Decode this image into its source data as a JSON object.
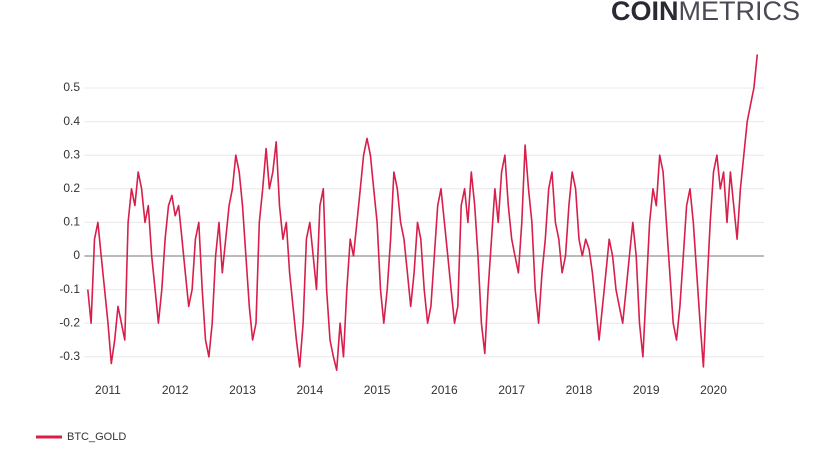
{
  "logo": {
    "bold": "COIN",
    "light": "METRICS"
  },
  "chart_data": {
    "type": "line",
    "x": [
      2010.7,
      2010.75,
      2010.8,
      2010.85,
      2010.9,
      2010.95,
      2011,
      2011.05,
      2011.1,
      2011.15,
      2011.2,
      2011.25,
      2011.3,
      2011.35,
      2011.4,
      2011.45,
      2011.5,
      2011.55,
      2011.6,
      2011.65,
      2011.7,
      2011.75,
      2011.8,
      2011.85,
      2011.9,
      2011.95,
      2012,
      2012.05,
      2012.1,
      2012.15,
      2012.2,
      2012.25,
      2012.3,
      2012.35,
      2012.4,
      2012.45,
      2012.5,
      2012.55,
      2012.6,
      2012.65,
      2012.7,
      2012.75,
      2012.8,
      2012.85,
      2012.9,
      2012.95,
      2013,
      2013.05,
      2013.1,
      2013.15,
      2013.2,
      2013.25,
      2013.3,
      2013.35,
      2013.4,
      2013.45,
      2013.5,
      2013.55,
      2013.6,
      2013.65,
      2013.7,
      2013.75,
      2013.8,
      2013.85,
      2013.9,
      2013.95,
      2014,
      2014.05,
      2014.1,
      2014.15,
      2014.2,
      2014.25,
      2014.3,
      2014.35,
      2014.4,
      2014.45,
      2014.5,
      2014.55,
      2014.6,
      2014.65,
      2014.7,
      2014.75,
      2014.8,
      2014.85,
      2014.9,
      2014.95,
      2015,
      2015.05,
      2015.1,
      2015.15,
      2015.2,
      2015.25,
      2015.3,
      2015.35,
      2015.4,
      2015.45,
      2015.5,
      2015.55,
      2015.6,
      2015.65,
      2015.7,
      2015.75,
      2015.8,
      2015.85,
      2015.9,
      2015.95,
      2016,
      2016.05,
      2016.1,
      2016.15,
      2016.2,
      2016.25,
      2016.3,
      2016.35,
      2016.4,
      2016.45,
      2016.5,
      2016.55,
      2016.6,
      2016.65,
      2016.7,
      2016.75,
      2016.8,
      2016.85,
      2016.9,
      2016.95,
      2017,
      2017.05,
      2017.1,
      2017.15,
      2017.2,
      2017.25,
      2017.3,
      2017.35,
      2017.4,
      2017.45,
      2017.5,
      2017.55,
      2017.6,
      2017.65,
      2017.7,
      2017.75,
      2017.8,
      2017.85,
      2017.9,
      2017.95,
      2018,
      2018.05,
      2018.1,
      2018.15,
      2018.2,
      2018.25,
      2018.3,
      2018.35,
      2018.4,
      2018.45,
      2018.5,
      2018.55,
      2018.6,
      2018.65,
      2018.7,
      2018.75,
      2018.8,
      2018.85,
      2018.9,
      2018.95,
      2019,
      2019.05,
      2019.1,
      2019.15,
      2019.2,
      2019.25,
      2019.3,
      2019.35,
      2019.4,
      2019.45,
      2019.5,
      2019.55,
      2019.6,
      2019.65,
      2019.7,
      2019.75,
      2019.8,
      2019.85,
      2019.9,
      2019.95,
      2020,
      2020.05,
      2020.1,
      2020.15,
      2020.2,
      2020.25,
      2020.3,
      2020.35,
      2020.4,
      2020.45,
      2020.5,
      2020.55,
      2020.6,
      2020.65
    ],
    "series": [
      {
        "name": "BTC_GOLD",
        "color": "#d81e4a",
        "values": [
          -0.1,
          -0.2,
          0.05,
          0.1,
          0.0,
          -0.1,
          -0.2,
          -0.32,
          -0.25,
          -0.15,
          -0.2,
          -0.25,
          0.1,
          0.2,
          0.15,
          0.25,
          0.2,
          0.1,
          0.15,
          0.0,
          -0.1,
          -0.2,
          -0.1,
          0.05,
          0.15,
          0.18,
          0.12,
          0.15,
          0.05,
          -0.05,
          -0.15,
          -0.1,
          0.05,
          0.1,
          -0.1,
          -0.25,
          -0.3,
          -0.2,
          0.0,
          0.1,
          -0.05,
          0.05,
          0.15,
          0.2,
          0.3,
          0.25,
          0.15,
          0.0,
          -0.15,
          -0.25,
          -0.2,
          0.1,
          0.2,
          0.32,
          0.2,
          0.25,
          0.34,
          0.15,
          0.05,
          0.1,
          -0.05,
          -0.15,
          -0.25,
          -0.33,
          -0.2,
          0.05,
          0.1,
          0.0,
          -0.1,
          0.15,
          0.2,
          -0.1,
          -0.25,
          -0.3,
          -0.34,
          -0.2,
          -0.3,
          -0.1,
          0.05,
          0.0,
          0.1,
          0.2,
          0.3,
          0.35,
          0.3,
          0.2,
          0.1,
          -0.1,
          -0.2,
          -0.1,
          0.05,
          0.25,
          0.2,
          0.1,
          0.05,
          -0.05,
          -0.15,
          -0.05,
          0.1,
          0.05,
          -0.1,
          -0.2,
          -0.15,
          0.0,
          0.15,
          0.2,
          0.1,
          0.0,
          -0.1,
          -0.2,
          -0.15,
          0.15,
          0.2,
          0.1,
          0.25,
          0.15,
          0.0,
          -0.2,
          -0.29,
          -0.1,
          0.05,
          0.2,
          0.1,
          0.25,
          0.3,
          0.15,
          0.05,
          0.0,
          -0.05,
          0.1,
          0.33,
          0.2,
          0.1,
          -0.1,
          -0.2,
          -0.05,
          0.05,
          0.2,
          0.25,
          0.1,
          0.05,
          -0.05,
          0.0,
          0.15,
          0.25,
          0.2,
          0.05,
          0.0,
          0.05,
          0.02,
          -0.05,
          -0.15,
          -0.25,
          -0.15,
          -0.05,
          0.05,
          0.0,
          -0.1,
          -0.15,
          -0.2,
          -0.1,
          0.0,
          0.1,
          0.0,
          -0.2,
          -0.3,
          -0.1,
          0.1,
          0.2,
          0.15,
          0.3,
          0.25,
          0.1,
          -0.05,
          -0.2,
          -0.25,
          -0.15,
          0.0,
          0.15,
          0.2,
          0.1,
          -0.05,
          -0.2,
          -0.33,
          -0.1,
          0.1,
          0.25,
          0.3,
          0.2,
          0.25,
          0.1,
          0.25,
          0.15,
          0.05,
          0.2,
          0.3,
          0.4,
          0.45,
          0.5,
          0.6
        ]
      }
    ],
    "xlim": [
      2010.65,
      2020.75
    ],
    "xticks": [
      2011,
      2012,
      2013,
      2014,
      2015,
      2016,
      2017,
      2018,
      2019,
      2020
    ],
    "ylim": [
      -0.35,
      0.6
    ],
    "yticks": [
      -0.3,
      -0.2,
      -0.1,
      0,
      0.1,
      0.2,
      0.3,
      0.4,
      0.5
    ],
    "grid": true
  }
}
